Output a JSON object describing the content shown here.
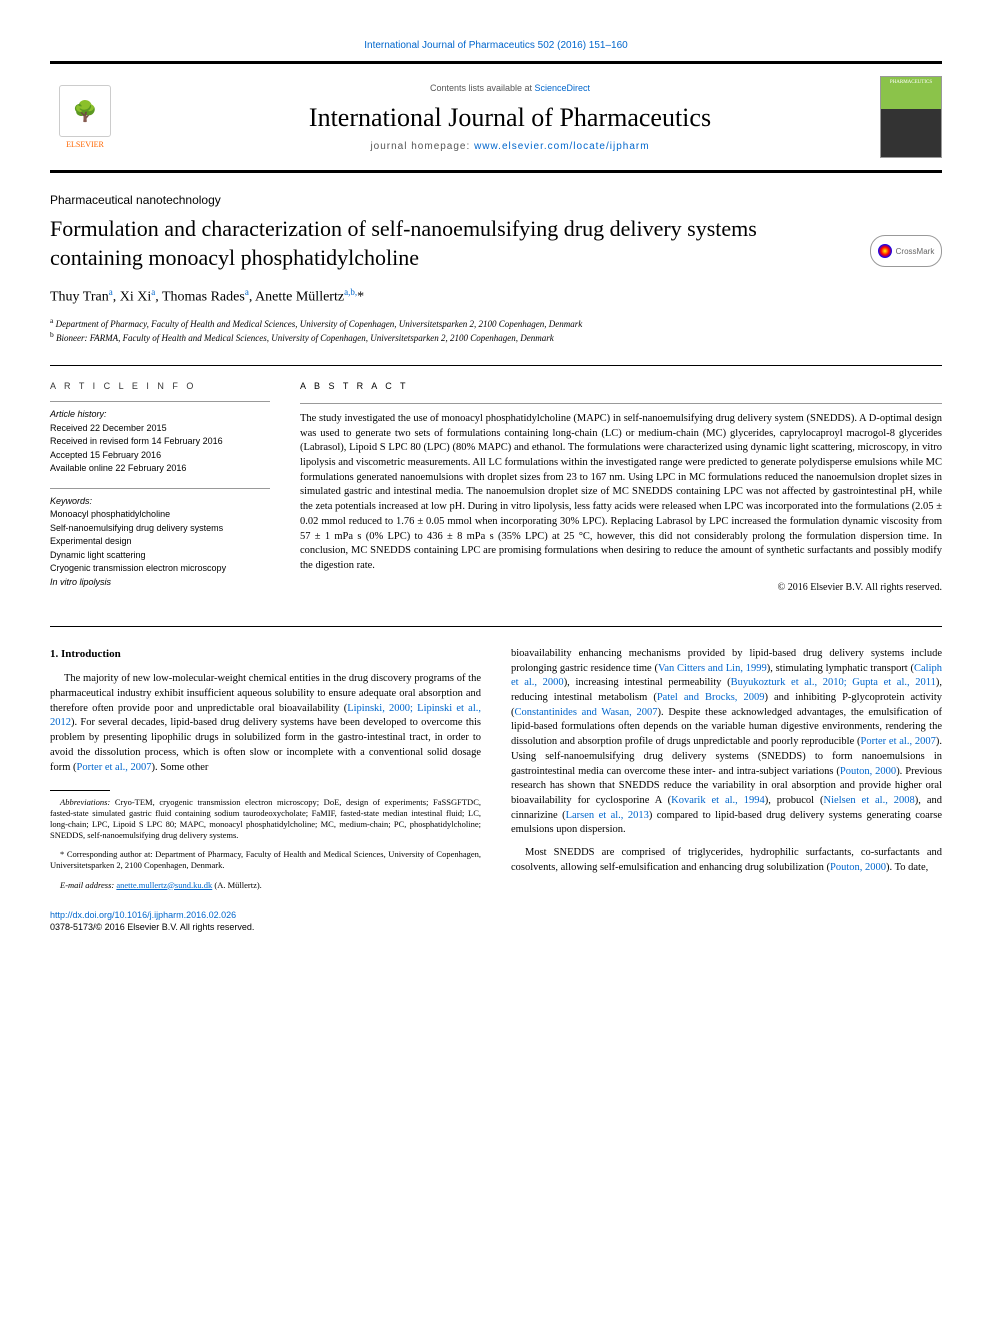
{
  "colors": {
    "link": "#0066cc",
    "text": "#000000",
    "elsevier_orange": "#ff6600",
    "cover_green": "#8bc34a"
  },
  "top_citation": "International Journal of Pharmaceutics 502 (2016) 151–160",
  "masthead": {
    "elsevier_label": "ELSEVIER",
    "contents_prefix": "Contents lists available at ",
    "contents_link": "ScienceDirect",
    "journal_name": "International Journal of Pharmaceutics",
    "homepage_prefix": "journal homepage: ",
    "homepage_url": "www.elsevier.com/locate/ijpharm",
    "cover_text": "PHARMACEUTICS"
  },
  "crossmark_label": "CrossMark",
  "section_label": "Pharmaceutical nanotechnology",
  "title": "Formulation and characterization of self-nanoemulsifying drug delivery systems containing monoacyl phosphatidylcholine",
  "authors_html": "Thuy Tran<sup>a</sup>, Xi Xi<sup>a</sup>, Thomas Rades<sup>a</sup>, Anette Müllertz<sup>a,b,</sup>*",
  "affiliations": {
    "a": "Department of Pharmacy, Faculty of Health and Medical Sciences, University of Copenhagen, Universitetsparken 2, 2100 Copenhagen, Denmark",
    "b": "Bioneer: FARMA, Faculty of Health and Medical Sciences, University of Copenhagen, Universitetsparken 2, 2100 Copenhagen, Denmark"
  },
  "article_info": {
    "header": "A R T I C L E   I N F O",
    "history_label": "Article history:",
    "history": [
      "Received 22 December 2015",
      "Received in revised form 14 February 2016",
      "Accepted 15 February 2016",
      "Available online 22 February 2016"
    ],
    "keywords_label": "Keywords:",
    "keywords": [
      "Monoacyl phosphatidylcholine",
      "Self-nanoemulsifying drug delivery systems",
      "Experimental design",
      "Dynamic light scattering",
      "Cryogenic transmission electron microscopy",
      "In vitro lipolysis"
    ]
  },
  "abstract": {
    "header": "A B S T R A C T",
    "text": "The study investigated the use of monoacyl phosphatidylcholine (MAPC) in self-nanoemulsifying drug delivery system (SNEDDS). A D-optimal design was used to generate two sets of formulations containing long-chain (LC) or medium-chain (MC) glycerides, caprylocaproyl macrogol-8 glycerides (Labrasol), Lipoid S LPC 80 (LPC) (80% MAPC) and ethanol. The formulations were characterized using dynamic light scattering, microscopy, in vitro lipolysis and viscometric measurements. All LC formulations within the investigated range were predicted to generate polydisperse emulsions while MC formulations generated nanoemulsions with droplet sizes from 23 to 167 nm. Using LPC in MC formulations reduced the nanoemulsion droplet sizes in simulated gastric and intestinal media. The nanoemulsion droplet size of MC SNEDDS containing LPC was not affected by gastrointestinal pH, while the zeta potentials increased at low pH. During in vitro lipolysis, less fatty acids were released when LPC was incorporated into the formulations (2.05 ± 0.02 mmol reduced to 1.76 ± 0.05 mmol when incorporating 30% LPC). Replacing Labrasol by LPC increased the formulation dynamic viscosity from 57 ± 1 mPa s (0% LPC) to 436 ± 8 mPa s (35% LPC) at 25 °C, however, this did not considerably prolong the formulation dispersion time. In conclusion, MC SNEDDS containing LPC are promising formulations when desiring to reduce the amount of synthetic surfactants and possibly modify the digestion rate.",
    "copyright": "© 2016 Elsevier B.V. All rights reserved."
  },
  "body": {
    "intro_heading": "1. Introduction",
    "col1_p1": "The majority of new low-molecular-weight chemical entities in the drug discovery programs of the pharmaceutical industry exhibit insufficient aqueous solubility to ensure adequate oral absorption and therefore often provide poor and unpredictable oral bioavailability (",
    "col1_cite1": "Lipinski, 2000; Lipinski et al., 2012",
    "col1_p1b": "). For several decades, lipid-based drug delivery systems have been developed to overcome this problem by presenting lipophilic drugs in solubilized form in the gastro-intestinal tract, in order to avoid the dissolution process, which is often slow or incomplete with a conventional solid dosage form (",
    "col1_cite2": "Porter et al., 2007",
    "col1_p1c": "). Some other",
    "col2_p1a": "bioavailability enhancing mechanisms provided by lipid-based drug delivery systems include prolonging gastric residence time (",
    "col2_cite1": "Van Citters and Lin, 1999",
    "col2_p1b": "), stimulating lymphatic transport (",
    "col2_cite2": "Caliph et al., 2000",
    "col2_p1c": "), increasing intestinal permeability (",
    "col2_cite3": "Buyukozturk et al., 2010; Gupta et al., 2011",
    "col2_p1d": "), reducing intestinal metabolism (",
    "col2_cite4": "Patel and Brocks, 2009",
    "col2_p1e": ") and inhibiting P-glycoprotein activity (",
    "col2_cite5": "Constantinides and Wasan, 2007",
    "col2_p1f": "). Despite these acknowledged advantages, the emulsification of lipid-based formulations often depends on the variable human digestive environments, rendering the dissolution and absorption profile of drugs unpredictable and poorly reproducible (",
    "col2_cite6": "Porter et al., 2007",
    "col2_p1g": "). Using self-nanoemulsifying drug delivery systems (SNEDDS) to form nanoemulsions in gastrointestinal media can overcome these inter- and intra-subject variations (",
    "col2_cite7": "Pouton, 2000",
    "col2_p1h": "). Previous research has shown that SNEDDS reduce the variability in oral absorption and provide higher oral bioavailability for cyclosporine A (",
    "col2_cite8": "Kovarik et al., 1994",
    "col2_p1i": "), probucol (",
    "col2_cite9": "Nielsen et al., 2008",
    "col2_p1j": "), and cinnarizine (",
    "col2_cite10": "Larsen et al., 2013",
    "col2_p1k": ") compared to lipid-based drug delivery systems generating coarse emulsions upon dispersion.",
    "col2_p2a": "Most SNEDDS are comprised of triglycerides, hydrophilic surfactants, co-surfactants and cosolvents, allowing self-emulsification and enhancing drug solubilization (",
    "col2_cite11": "Pouton, 2000",
    "col2_p2b": "). To date,"
  },
  "footnotes": {
    "abbrev_label": "Abbreviations:",
    "abbrev_text": " Cryo-TEM, cryogenic transmission electron microscopy; DoE, design of experiments; FaSSGFTDC, fasted-state simulated gastric fluid containing sodium taurodeoxycholate; FaMIF, fasted-state median intestinal fluid; LC, long-chain; LPC, Lipoid S LPC 80; MAPC, monoacyl phosphatidylcholine; MC, medium-chain; PC, phosphatidylcholine; SNEDDS, self-nanoemulsifying drug delivery systems.",
    "corr_label": "* Corresponding author at: ",
    "corr_text": "Department of Pharmacy, Faculty of Health and Medical Sciences, University of Copenhagen, Universitetsparken 2, 2100 Copenhagen, Denmark.",
    "email_label": "E-mail address: ",
    "email": "anette.mullertz@sund.ku.dk",
    "email_who": " (A. Müllertz)."
  },
  "footer": {
    "doi": "http://dx.doi.org/10.1016/j.ijpharm.2016.02.026",
    "issn_line": "0378-5173/© 2016 Elsevier B.V. All rights reserved."
  }
}
